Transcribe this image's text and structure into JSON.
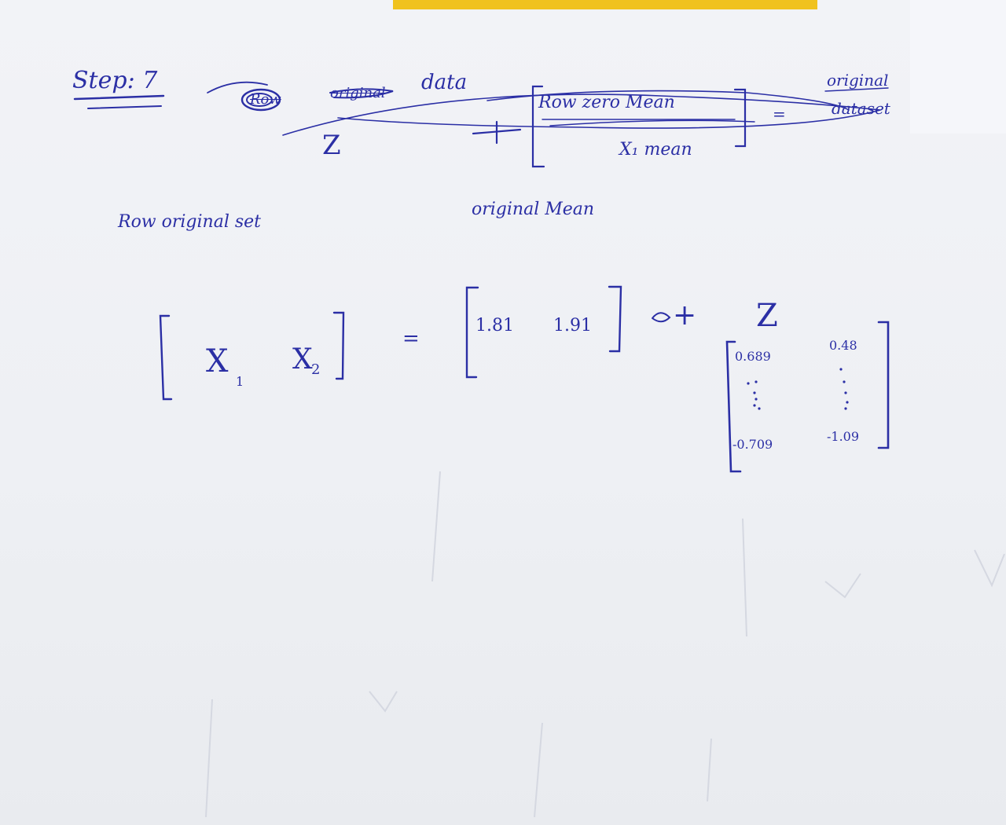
{
  "header": {
    "step": "Step: 7",
    "strike_row": "Row",
    "strike_original": "original",
    "data_word": "data",
    "row_zero_mean": "Row zero Mean",
    "x_mean": "X₁ mean",
    "z": "Z",
    "plus": "+",
    "minus": "=",
    "original_dataset_1": "original",
    "original_dataset_2": "dataset"
  },
  "subheader": {
    "row_original_set": "Row original set",
    "original_mean": "original Mean"
  },
  "equation": {
    "x1": "X",
    "x1_sub": "1",
    "x2": "X",
    "x2_sub": "2",
    "equals": "=",
    "mean_1": "1.81",
    "mean_2": "1.91",
    "plus": "+",
    "z_label": "Z",
    "z_top_left": "0.689",
    "z_top_right": "0.48",
    "z_bottom_left": "-0.709",
    "z_bottom_right": "-1.09"
  },
  "colors": {
    "ink": "#2b2fa5",
    "paper": "#eef0f4",
    "tape": "#f0c21e"
  }
}
